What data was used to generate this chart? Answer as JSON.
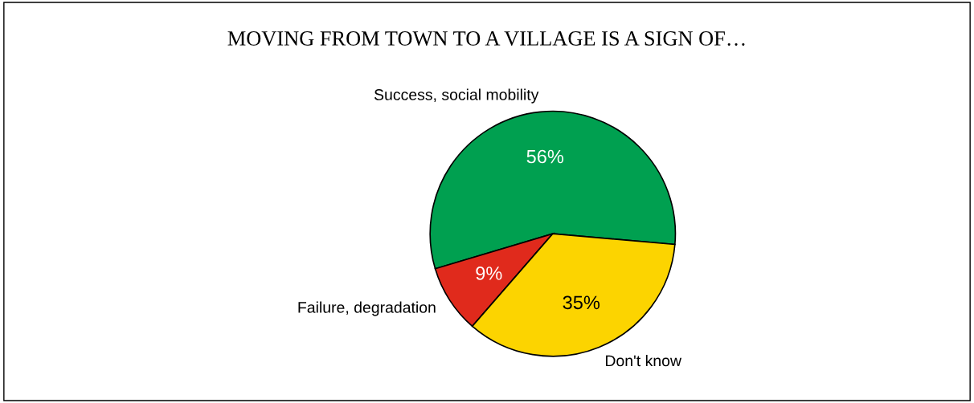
{
  "chart_data": {
    "type": "pie",
    "title": "MOVING FROM TOWN TO A VILLAGE IS A SIGN OF…",
    "categories": [
      "Success, social mobility",
      "Failure, degradation",
      "Don't know"
    ],
    "values": [
      56,
      9,
      35
    ],
    "colors": [
      "#00a050",
      "#e02a1c",
      "#fcd400"
    ],
    "value_labels": [
      "56%",
      "9%",
      "35%"
    ],
    "legend": false
  }
}
